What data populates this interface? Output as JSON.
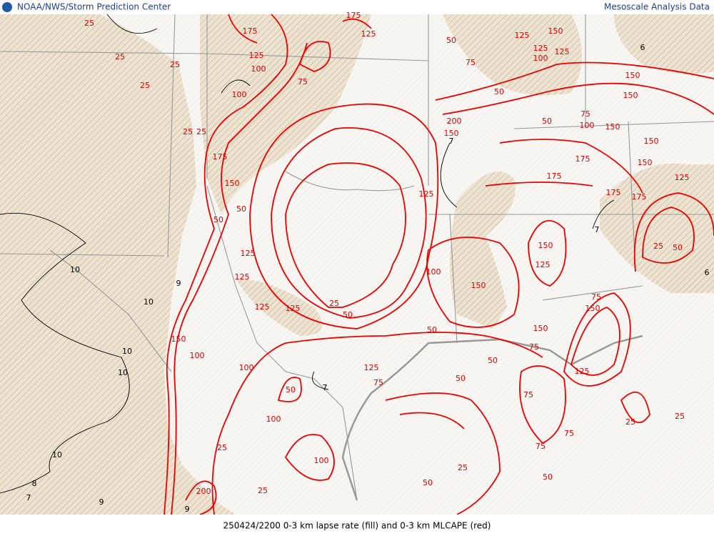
{
  "header": {
    "left": "NOAA/NWS/Storm Prediction Center",
    "right": "Mesoscale Analysis Data"
  },
  "footer": {
    "caption": "250424/2200 0-3 km lapse rate (fill) and 0-3 km MLCAPE (red)"
  },
  "map": {
    "cape_labels": [
      "25",
      "25",
      "25",
      "25",
      "25",
      "25",
      "25",
      "25",
      "25",
      "25",
      "25",
      "25",
      "25",
      "50",
      "50",
      "50",
      "50",
      "50",
      "50",
      "50",
      "50",
      "50",
      "50",
      "50",
      "50",
      "50",
      "75",
      "75",
      "75",
      "75",
      "75",
      "75",
      "75",
      "75",
      "75",
      "100",
      "100",
      "100",
      "100",
      "100",
      "100",
      "100",
      "100",
      "100",
      "125",
      "125",
      "125",
      "125",
      "125",
      "125",
      "125",
      "125",
      "125",
      "125",
      "125",
      "125",
      "125",
      "125",
      "150",
      "150",
      "150",
      "150",
      "150",
      "150",
      "150",
      "150",
      "150",
      "150",
      "150",
      "150",
      "150",
      "175",
      "175",
      "175",
      "175",
      "175",
      "175",
      "175",
      "200",
      "200"
    ],
    "lapse_labels": [
      "10",
      "10",
      "10",
      "10",
      "10",
      "9",
      "9",
      "9",
      "8",
      "7",
      "7",
      "7",
      "7",
      "6",
      "6"
    ]
  }
}
